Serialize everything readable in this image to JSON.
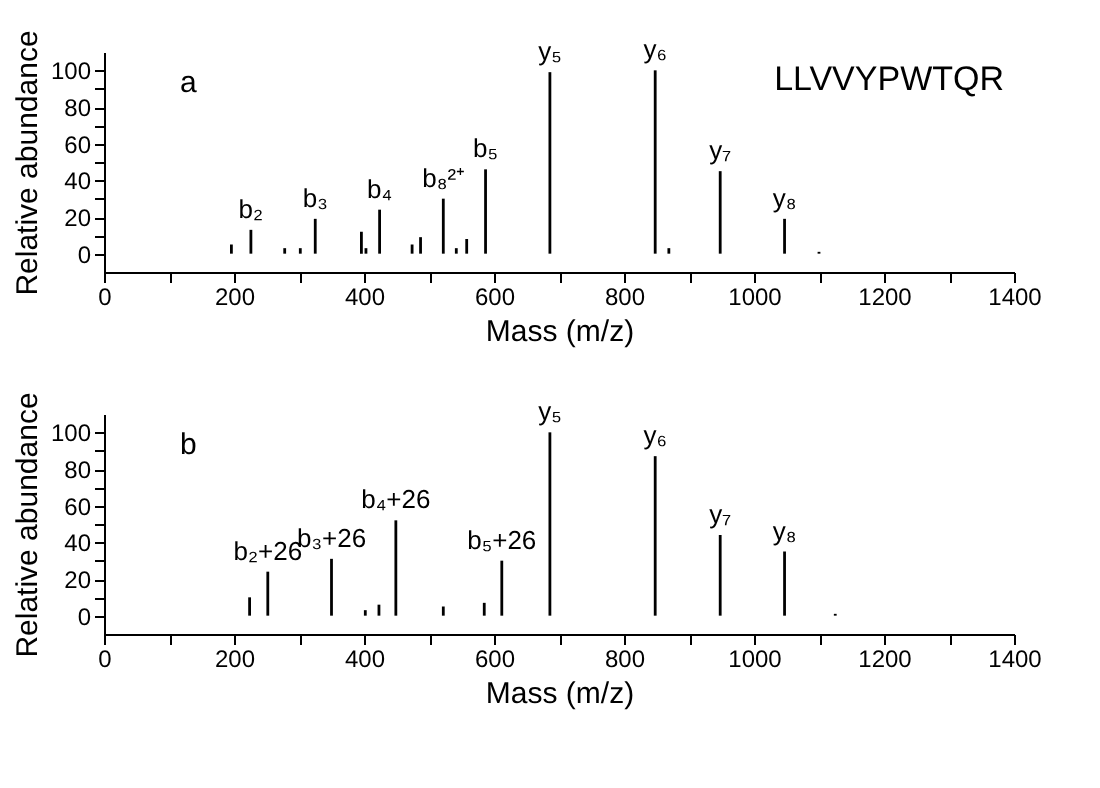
{
  "chart_data": [
    {
      "type": "bar",
      "xlabel": "Mass (m/z)",
      "ylabel": "Relative abundance",
      "x": [
        196,
        226,
        278,
        302,
        325,
        396,
        403,
        424,
        474,
        487,
        522,
        542,
        558,
        587,
        686,
        848,
        869,
        948,
        1047,
        1100
      ],
      "values": [
        5,
        13,
        3,
        3,
        19,
        12,
        3,
        24,
        5,
        9,
        30,
        3,
        8,
        46,
        99,
        100,
        3,
        45,
        19,
        1
      ],
      "color": "#000000",
      "xlim": [
        0,
        1400
      ],
      "ylim": [
        -10,
        110
      ],
      "xticks": [
        0,
        {
          "value": 100,
          "label": null
        },
        200,
        {
          "value": 300,
          "label": null
        },
        400,
        {
          "value": 500,
          "label": null
        },
        600,
        {
          "value": 700,
          "label": null
        },
        800,
        {
          "value": 900,
          "label": null
        },
        1000,
        {
          "value": 1100,
          "label": null
        },
        1200,
        {
          "value": 1300,
          "label": null
        },
        1400
      ],
      "yticks": [
        0,
        {
          "value": 10,
          "label": null
        },
        20,
        {
          "value": 30,
          "label": null
        },
        40,
        {
          "value": 50,
          "label": null
        },
        60,
        {
          "value": 70,
          "label": null
        },
        80,
        {
          "value": 90,
          "label": null
        },
        100
      ],
      "grid": false,
      "annotations": [
        "a",
        "LLVVYPWTQR",
        {
          "text": "b₂",
          "x": 226,
          "y": 13
        },
        {
          "text": "b₃",
          "x": 325,
          "y": 19
        },
        {
          "text": "b₄",
          "x": 424,
          "y": 24
        },
        {
          "text": "b₈²⁺",
          "x": 522,
          "y": 30
        },
        {
          "text": "b₅",
          "x": 587,
          "y": 46
        },
        {
          "text": "y₅",
          "x": 686,
          "y": 99
        },
        {
          "text": "y₆",
          "x": 848,
          "y": 100
        },
        {
          "text": "y₇",
          "x": 948,
          "y": 45
        },
        {
          "text": "y₈",
          "x": 1047,
          "y": 19
        }
      ]
    },
    {
      "type": "bar",
      "xlabel": "Mass (m/z)",
      "ylabel": "Relative abundance",
      "x": [
        224,
        252,
        350,
        402,
        423,
        449,
        522,
        585,
        612,
        686,
        848,
        948,
        1047,
        1125
      ],
      "values": [
        10,
        24,
        31,
        3,
        6,
        52,
        5,
        7,
        30,
        100,
        87,
        44,
        35,
        1
      ],
      "color": "#000000",
      "xlim": [
        0,
        1400
      ],
      "ylim": [
        -10,
        110
      ],
      "xticks": [
        0,
        {
          "value": 100,
          "label": null
        },
        200,
        {
          "value": 300,
          "label": null
        },
        400,
        {
          "value": 500,
          "label": null
        },
        600,
        {
          "value": 700,
          "label": null
        },
        800,
        {
          "value": 900,
          "label": null
        },
        1000,
        {
          "value": 1100,
          "label": null
        },
        1200,
        {
          "value": 1300,
          "label": null
        },
        1400
      ],
      "yticks": [
        0,
        {
          "value": 10,
          "label": null
        },
        20,
        {
          "value": 30,
          "label": null
        },
        40,
        {
          "value": 50,
          "label": null
        },
        60,
        {
          "value": 70,
          "label": null
        },
        80,
        {
          "value": 90,
          "label": null
        },
        100
      ],
      "grid": false,
      "annotations": [
        "b",
        {
          "text": "b₂+26",
          "x": 252,
          "y": 24
        },
        {
          "text": "b₃+26",
          "x": 350,
          "y": 31
        },
        {
          "text": "b₄+26",
          "x": 449,
          "y": 52
        },
        {
          "text": "b₅+26",
          "x": 612,
          "y": 30
        },
        {
          "text": "y₅",
          "x": 686,
          "y": 100
        },
        {
          "text": "y₆",
          "x": 848,
          "y": 87
        },
        {
          "text": "y₇",
          "x": 948,
          "y": 44
        },
        {
          "text": "y₈",
          "x": 1047,
          "y": 35
        }
      ]
    }
  ]
}
